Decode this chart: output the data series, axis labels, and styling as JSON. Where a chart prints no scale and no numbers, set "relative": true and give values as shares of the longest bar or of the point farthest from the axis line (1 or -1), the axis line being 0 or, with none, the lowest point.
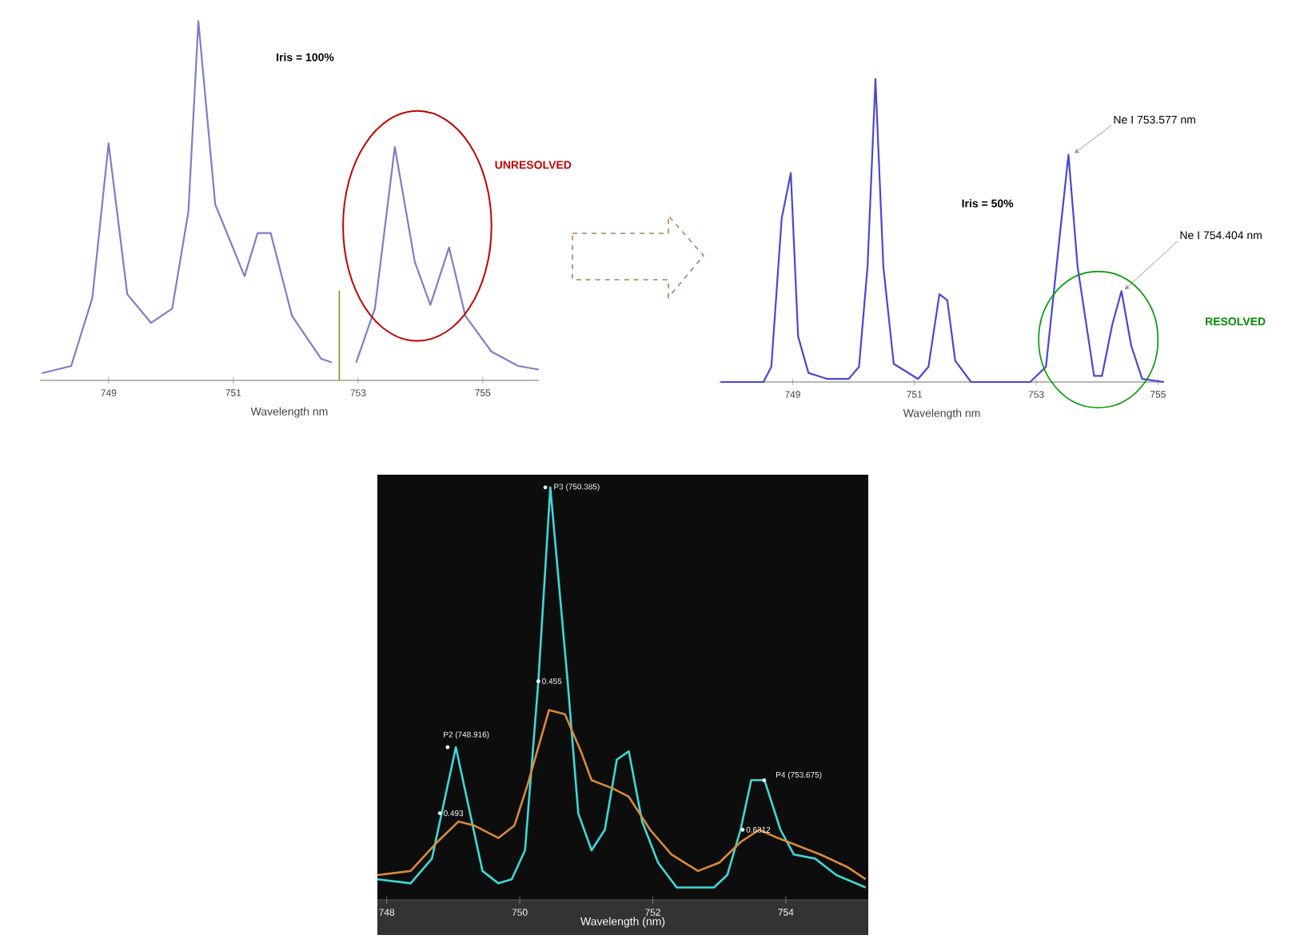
{
  "chart_data": [
    {
      "type": "line",
      "relative": true,
      "xlabel": "Wavelength nm",
      "xlim": [
        747.9,
        755.9
      ],
      "xticks": [
        749,
        751,
        753,
        755
      ],
      "annotations": [
        "Iris = 100%",
        "UNRESOLVED"
      ],
      "ref_lines": [
        {
          "axis": "x",
          "value": 752.7,
          "color": "#8a8a20"
        }
      ],
      "series": [
        {
          "color": "#7b7fc4",
          "x": [
            747.93,
            748.4,
            748.74,
            749.0,
            749.3,
            749.68,
            750.02,
            750.28,
            750.44,
            750.71,
            751.18,
            751.39,
            751.6,
            751.94,
            752.41,
            752.58,
            752.7,
            752.97,
            753.27,
            753.59,
            753.91,
            754.16,
            754.46,
            754.72,
            755.14,
            755.57,
            755.9
          ],
          "values": [
            0.02,
            0.04,
            0.23,
            0.66,
            0.24,
            0.16,
            0.2,
            0.47,
            1.0,
            0.49,
            0.29,
            0.41,
            0.41,
            0.18,
            0.06,
            0.05,
            null,
            0.05,
            0.2,
            0.65,
            0.33,
            0.21,
            0.37,
            0.18,
            0.08,
            0.04,
            0.03
          ]
        }
      ]
    },
    {
      "type": "line",
      "relative": true,
      "xlabel": "Wavelength nm",
      "xlim": [
        747.8,
        755.1
      ],
      "xticks": [
        749,
        751,
        753,
        755
      ],
      "annotations": [
        "Iris = 50%",
        {
          "text": "Ne I 753.577 nm",
          "x": 753.577,
          "y": 0.75
        },
        {
          "text": "Ne I 754.404 nm",
          "x": 754.404,
          "y": 0.3
        },
        "RESOLVED"
      ],
      "series": [
        {
          "color": "#4848d0",
          "x": [
            747.82,
            748.52,
            748.65,
            748.82,
            748.97,
            749.09,
            749.26,
            749.57,
            749.92,
            750.09,
            750.23,
            750.36,
            750.49,
            750.66,
            751.06,
            751.23,
            751.41,
            751.54,
            751.67,
            751.93,
            752.9,
            753.16,
            753.38,
            753.53,
            753.68,
            753.95,
            754.08,
            754.25,
            754.4,
            754.56,
            754.74,
            755.1
          ],
          "values": [
            0,
            0,
            0.05,
            0.54,
            0.69,
            0.15,
            0.03,
            0.01,
            0.01,
            0.05,
            0.38,
            1.0,
            0.38,
            0.06,
            0.01,
            0.05,
            0.29,
            0.27,
            0.07,
            0,
            0,
            0.05,
            0.47,
            0.75,
            0.38,
            0.02,
            0.02,
            0.19,
            0.3,
            0.12,
            0.01,
            0
          ]
        }
      ]
    },
    {
      "type": "line",
      "relative": true,
      "xlabel": "Wavelength (nm)",
      "xlim": [
        747.86,
        755.24
      ],
      "xticks": [
        748,
        750,
        752,
        754
      ],
      "annotations": [
        {
          "text": "P3 (750.385)",
          "x": 750.385,
          "y": 1.0
        },
        {
          "text": "P2 (748.916)",
          "x": 748.916,
          "y": 0.37
        },
        {
          "text": "P4 (753.675)",
          "x": 753.675,
          "y": 0.29
        },
        {
          "text": "0.455",
          "x": 750.28,
          "y": 0.53
        },
        {
          "text": "0.493",
          "x": 748.8,
          "y": 0.21
        },
        {
          "text": "0.6312",
          "x": 753.35,
          "y": 0.17
        }
      ],
      "series": [
        {
          "color": "#3fd8d8",
          "x": [
            747.86,
            748.36,
            748.68,
            749.04,
            749.44,
            749.68,
            749.88,
            750.08,
            750.28,
            750.46,
            750.72,
            750.88,
            751.08,
            751.28,
            751.46,
            751.64,
            751.84,
            752.08,
            752.36,
            752.92,
            753.12,
            753.32,
            753.48,
            753.68,
            753.92,
            754.12,
            754.44,
            754.76,
            755.2
          ],
          "values": [
            0.05,
            0.04,
            0.1,
            0.37,
            0.07,
            0.04,
            0.05,
            0.12,
            0.53,
            1.0,
            0.53,
            0.21,
            0.12,
            0.17,
            0.34,
            0.36,
            0.19,
            0.09,
            0.03,
            0.03,
            0.06,
            0.17,
            0.29,
            0.29,
            0.17,
            0.11,
            0.1,
            0.06,
            0.03
          ]
        },
        {
          "color": "#d98a3a",
          "x": [
            747.86,
            748.36,
            748.76,
            749.08,
            749.32,
            749.68,
            749.92,
            750.12,
            750.44,
            750.68,
            750.92,
            751.08,
            751.4,
            751.64,
            751.96,
            752.28,
            752.68,
            753.0,
            753.32,
            753.6,
            753.88,
            754.2,
            754.52,
            754.92,
            755.2
          ],
          "values": [
            0.06,
            0.07,
            0.14,
            0.19,
            0.18,
            0.15,
            0.18,
            0.28,
            0.46,
            0.45,
            0.36,
            0.29,
            0.27,
            0.25,
            0.17,
            0.11,
            0.07,
            0.09,
            0.14,
            0.17,
            0.15,
            0.13,
            0.11,
            0.08,
            0.05
          ]
        }
      ]
    }
  ]
}
